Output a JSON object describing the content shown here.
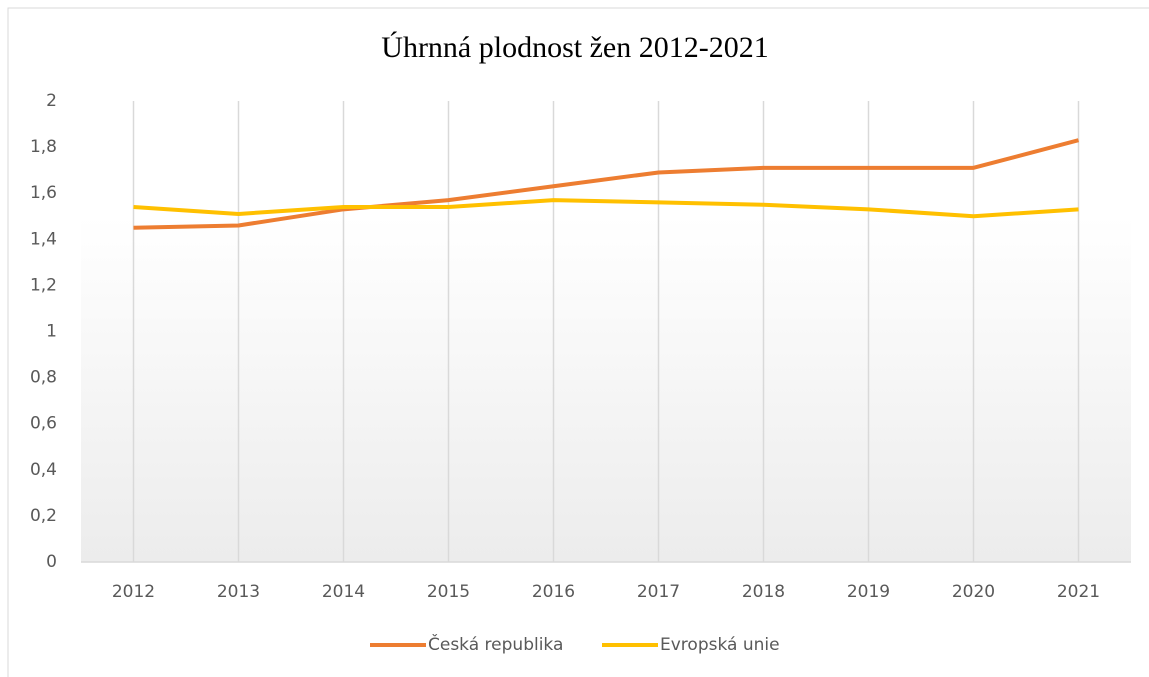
{
  "chart_data": {
    "type": "line",
    "title": "Úhrnná plodnost žen 2012-2021",
    "categories": [
      "2012",
      "2013",
      "2014",
      "2015",
      "2016",
      "2017",
      "2018",
      "2019",
      "2020",
      "2021"
    ],
    "series": [
      {
        "name": "Česká republika",
        "color": "#ed7d31",
        "values": [
          1.45,
          1.46,
          1.53,
          1.57,
          1.63,
          1.69,
          1.71,
          1.71,
          1.71,
          1.83
        ]
      },
      {
        "name": "Evropská unie",
        "color": "#ffc000",
        "values": [
          1.54,
          1.51,
          1.54,
          1.54,
          1.57,
          1.56,
          1.55,
          1.53,
          1.5,
          1.53
        ]
      }
    ],
    "ylim": [
      0,
      2
    ],
    "yticks": [
      0,
      {
        "value": 0.2,
        "label": "0,2"
      },
      {
        "value": 0.4,
        "label": "0,4"
      },
      {
        "value": 0.6,
        "label": "0,6"
      },
      {
        "value": 0.8,
        "label": "0,8"
      },
      1,
      {
        "value": 1.2,
        "label": "1,2"
      },
      {
        "value": 1.4,
        "label": "1,4"
      },
      {
        "value": 1.6,
        "label": "1,6"
      },
      {
        "value": 1.8,
        "label": "1,8"
      },
      2
    ],
    "grid": true,
    "legend": "bottom"
  }
}
